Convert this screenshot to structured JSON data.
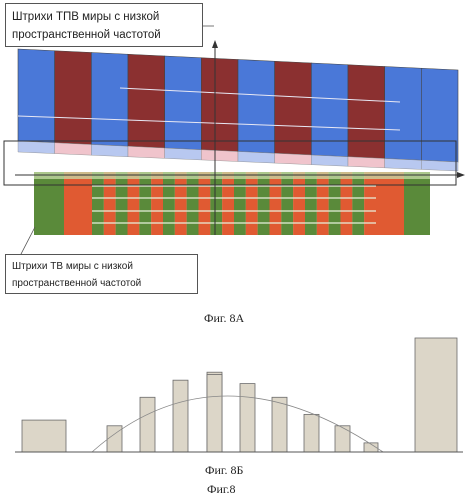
{
  "labels": {
    "top_callout": "Штрихи ТПВ миры с низкой пространственной частотой",
    "bottom_callout": "Штрихи ТВ миры с низкой пространственной частотой",
    "caption_8a": "Фиг. 8А",
    "caption_8b": "Фиг. 8Б",
    "caption_8": "Фиг.8"
  },
  "colors": {
    "blue": "#4a78d8",
    "maroon": "#8b3030",
    "pale_blue": "#b8c8f0",
    "pale_pink": "#f0c4cc",
    "green": "#5a8a3a",
    "orange": "#e05a32",
    "light_green": "#c8dca8",
    "bar_fill": "#dcd6c8",
    "bar_stroke": "#6a6a6a"
  },
  "fig8a": {
    "tpv_stripes": [
      "blue",
      "maroon",
      "blue",
      "maroon",
      "blue",
      "maroon",
      "blue",
      "maroon",
      "blue",
      "maroon",
      "blue",
      "blue"
    ],
    "tv_pattern": [
      "green",
      "orange",
      "fine",
      "fine",
      "fine",
      "fine",
      "fine",
      "fine",
      "fine",
      "fine",
      "fine",
      "fine",
      "fine",
      "orange",
      "green"
    ]
  },
  "fig8b": {
    "bar_heights": [
      0.28,
      0.23,
      0.48,
      0.63,
      0.7,
      0.68,
      0.6,
      0.48,
      0.33,
      0.23,
      0.08,
      1.0
    ]
  }
}
